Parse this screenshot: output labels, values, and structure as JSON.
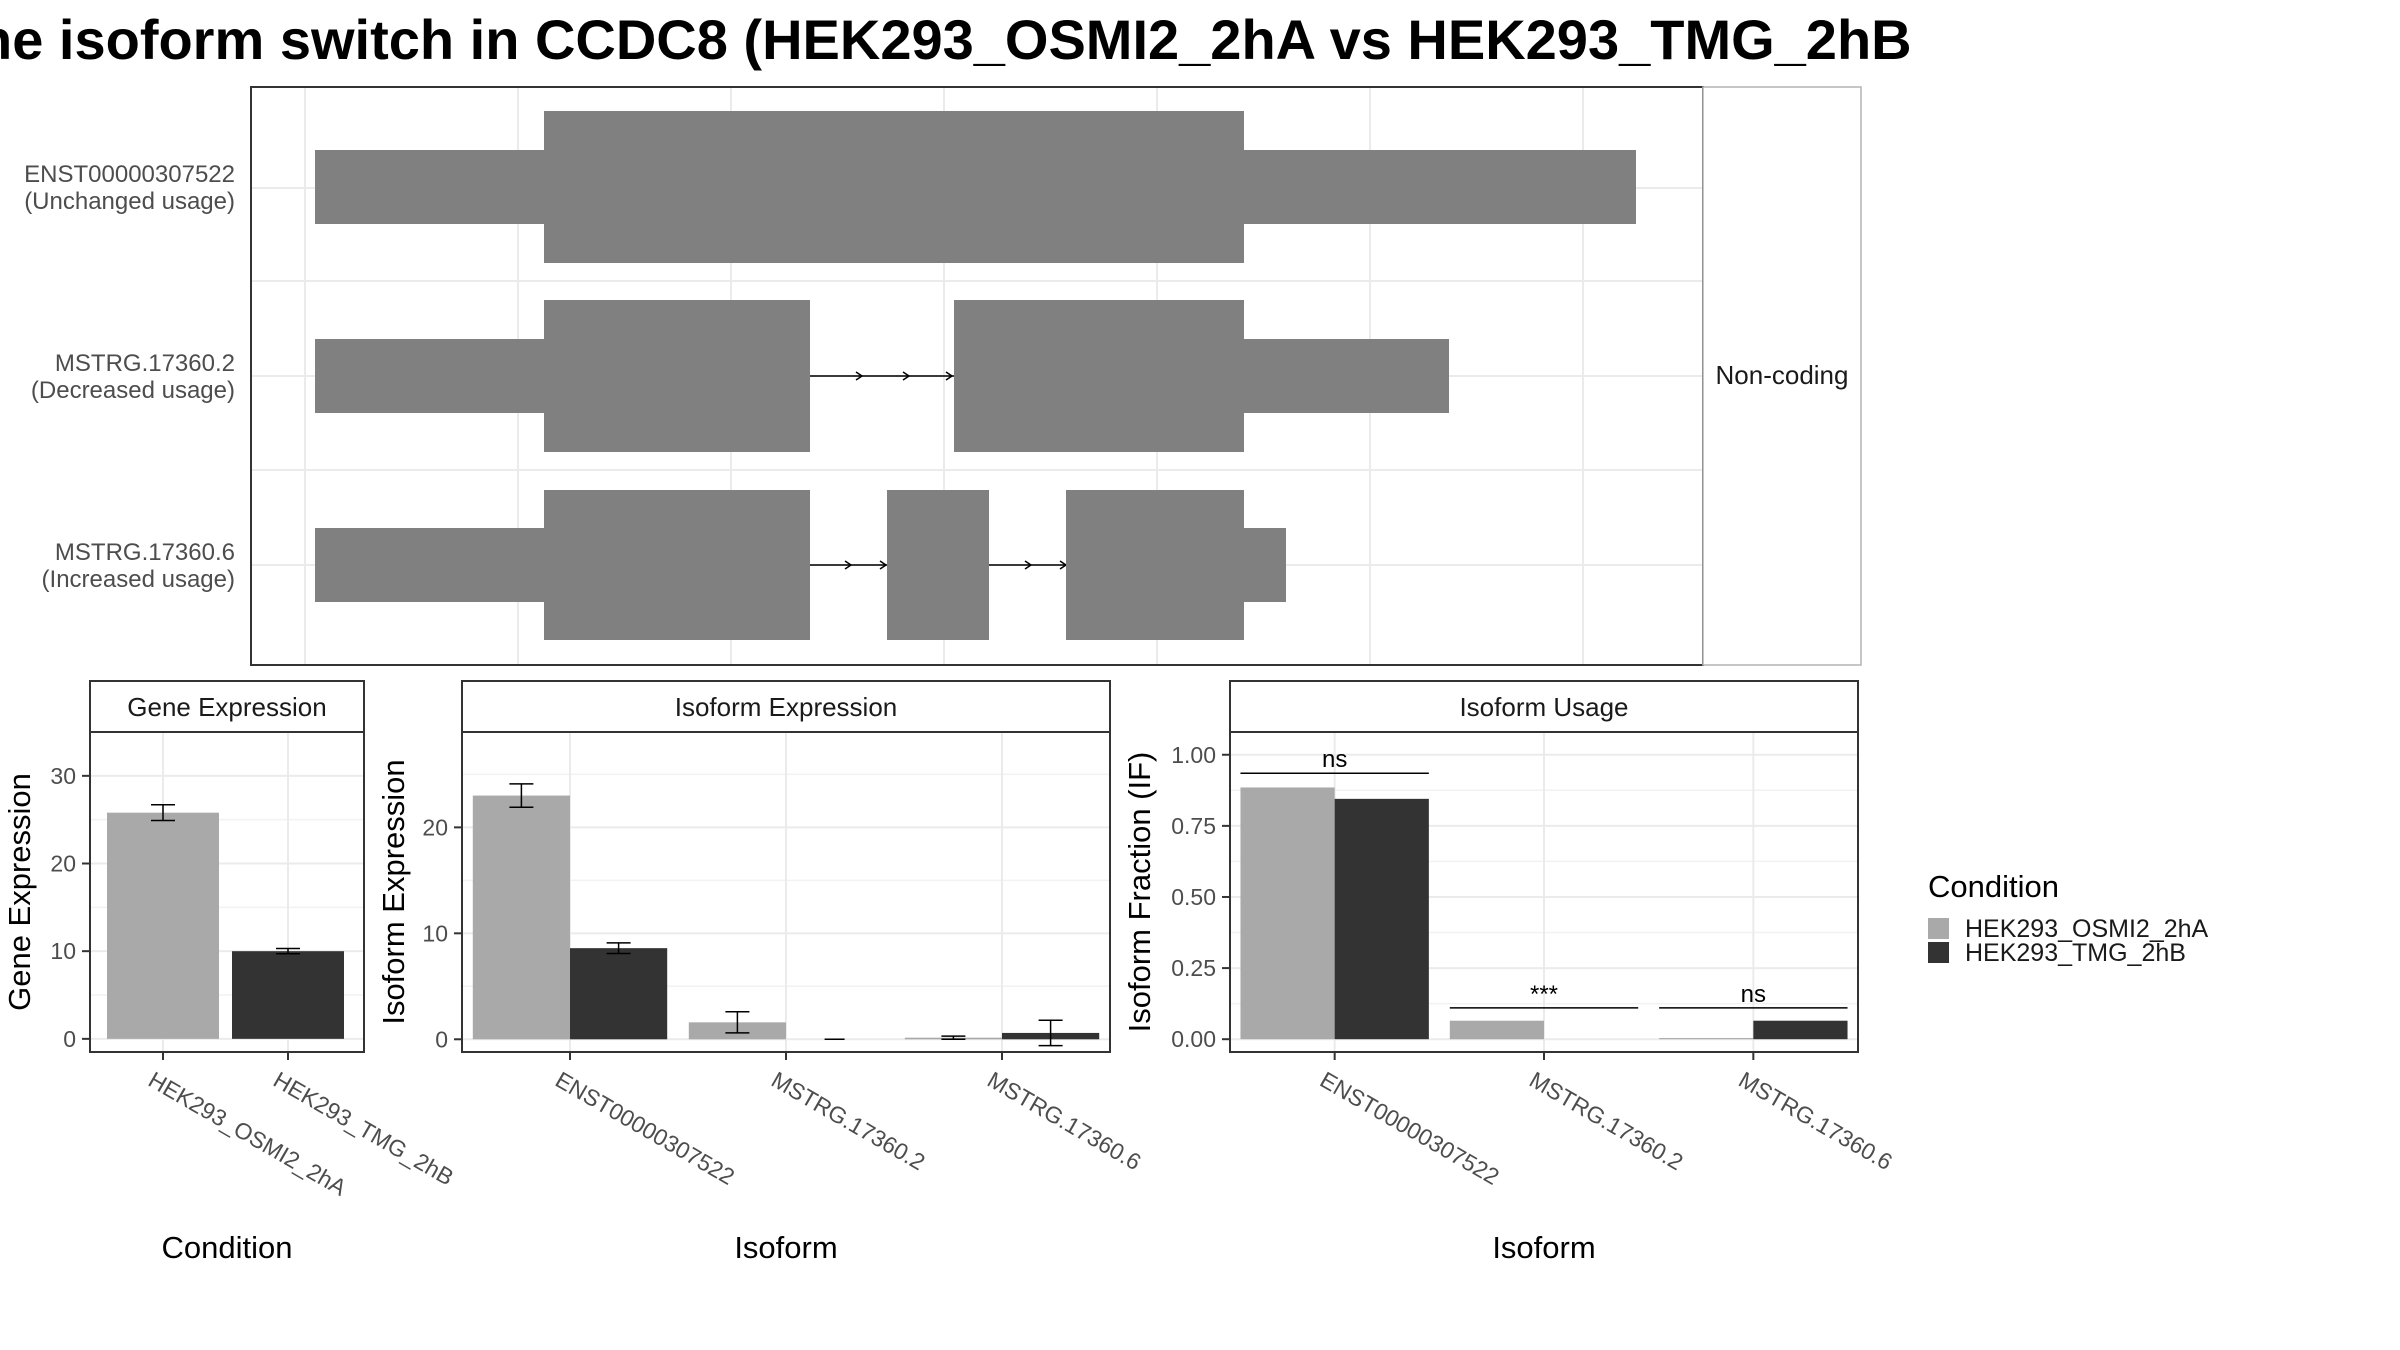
{
  "title": "he isoform switch in CCDC8 (HEK293_OSMI2_2hA vs HEK293_TMG_2hB",
  "colors": {
    "cond_a": "#a9a9a9",
    "cond_b": "#333333",
    "exon": "#808080",
    "grid": "#ebebeb",
    "panel_border": "#333333"
  },
  "chart_data": [
    {
      "type": "gene-structure",
      "side_label": "Non-coding",
      "transcripts": [
        {
          "name": "ENST00000307522",
          "usage": "(Unchanged usage)"
        },
        {
          "name": "MSTRG.17360.2",
          "usage": "(Decreased usage)"
        },
        {
          "name": "MSTRG.17360.6",
          "usage": "(Increased usage)"
        }
      ]
    },
    {
      "type": "bar",
      "strip": "Gene Expression",
      "xlabel": "Condition",
      "ylabel": "Gene Expression",
      "categories": [
        "HEK293_OSMI2_2hA",
        "HEK293_TMG_2hB"
      ],
      "values": [
        25.8,
        10.0
      ],
      "errors": [
        0.9,
        0.3
      ],
      "ylim": [
        -1.5,
        35
      ],
      "yticks": [
        0,
        10,
        20,
        30
      ]
    },
    {
      "type": "bar",
      "strip": "Isoform Expression",
      "xlabel": "Isoform",
      "ylabel": "Isoform Expression",
      "categories": [
        "ENST00000307522",
        "MSTRG.17360.2",
        "MSTRG.17360.6"
      ],
      "series": [
        {
          "name": "HEK293_OSMI2_2hA",
          "values": [
            23.0,
            1.6,
            0.15
          ],
          "errors": [
            1.1,
            1.0,
            0.15
          ]
        },
        {
          "name": "HEK293_TMG_2hB",
          "values": [
            8.6,
            0.0,
            0.6
          ],
          "errors": [
            0.5,
            0.0,
            1.2
          ]
        }
      ],
      "ylim": [
        -1.2,
        29
      ],
      "yticks": [
        0,
        10,
        20
      ]
    },
    {
      "type": "bar",
      "strip": "Isoform Usage",
      "xlabel": "Isoform",
      "ylabel": "Isoform Fraction (IF)",
      "categories": [
        "ENST00000307522",
        "MSTRG.17360.2",
        "MSTRG.17360.6"
      ],
      "series": [
        {
          "name": "HEK293_OSMI2_2hA",
          "values": [
            0.885,
            0.065,
            0.004
          ]
        },
        {
          "name": "HEK293_TMG_2hB",
          "values": [
            0.845,
            0.0,
            0.065
          ]
        }
      ],
      "significance": [
        "ns",
        "***",
        "ns"
      ],
      "ylim": [
        -0.045,
        1.08
      ],
      "yticks": [
        0.0,
        0.25,
        0.5,
        0.75,
        1.0
      ],
      "ytick_labels": [
        "0.00",
        "0.25",
        "0.50",
        "0.75",
        "1.00"
      ]
    }
  ],
  "legend": {
    "title": "Condition",
    "entries": [
      "HEK293_OSMI2_2hA",
      "HEK293_TMG_2hB"
    ]
  }
}
